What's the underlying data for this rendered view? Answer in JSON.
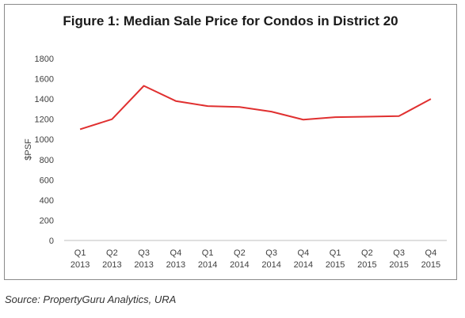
{
  "chart_data": {
    "type": "line",
    "title": "Figure 1: Median Sale Price for Condos in District 20",
    "xlabel": "",
    "ylabel": "$PSF",
    "ylim": [
      0,
      1800
    ],
    "yticks": [
      0,
      200,
      400,
      600,
      800,
      1000,
      1200,
      1400,
      1600,
      1800
    ],
    "categories": [
      [
        "Q1",
        "2013"
      ],
      [
        "Q2",
        "2013"
      ],
      [
        "Q3",
        "2013"
      ],
      [
        "Q4",
        "2013"
      ],
      [
        "Q1",
        "2014"
      ],
      [
        "Q2",
        "2014"
      ],
      [
        "Q3",
        "2014"
      ],
      [
        "Q4",
        "2014"
      ],
      [
        "Q1",
        "2015"
      ],
      [
        "Q2",
        "2015"
      ],
      [
        "Q3",
        "2015"
      ],
      [
        "Q4",
        "2015"
      ]
    ],
    "series": [
      {
        "color": "#e03030",
        "values": [
          1100,
          1200,
          1530,
          1380,
          1330,
          1320,
          1275,
          1195,
          1220,
          1225,
          1230,
          1400
        ]
      }
    ],
    "grid": false,
    "legend": "none"
  },
  "source": "Source: PropertyGuru Analytics, URA"
}
